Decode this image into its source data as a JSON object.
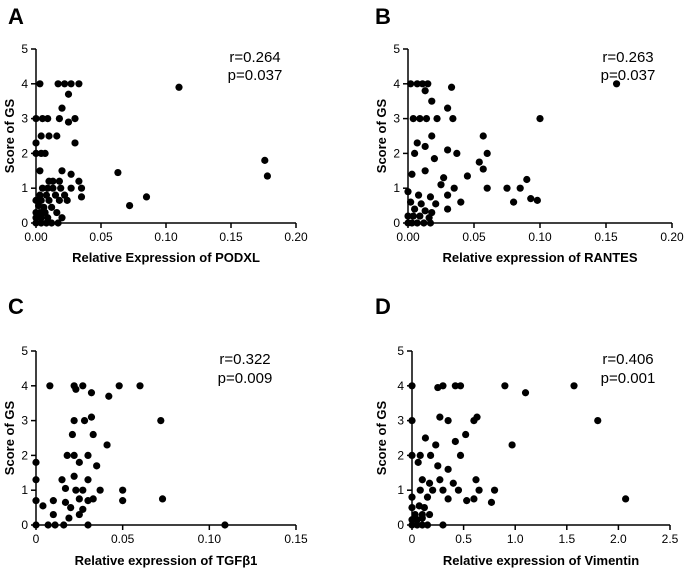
{
  "chart_data": [
    {
      "type": "scatter",
      "panel": "A",
      "xlabel": "Relative Expression of PODXL",
      "ylabel": "Score of GS",
      "xlim": [
        0,
        0.2
      ],
      "ylim": [
        0,
        5
      ],
      "xticks": [
        0,
        0.05,
        0.1,
        0.15,
        0.2
      ],
      "xtick_labels": [
        "0.00",
        "0.05",
        "0.10",
        "0.15",
        "0.20"
      ],
      "yticks": [
        0,
        1,
        2,
        3,
        4,
        5
      ],
      "ytick_labels": [
        "0",
        "1",
        "2",
        "3",
        "4",
        "5"
      ],
      "stats": [
        "r=0.264",
        "p=0.037"
      ],
      "points": [
        [
          0.003,
          4
        ],
        [
          0.017,
          4
        ],
        [
          0.022,
          4
        ],
        [
          0.027,
          4
        ],
        [
          0.033,
          4
        ],
        [
          0.11,
          3.9
        ],
        [
          0.025,
          3.7
        ],
        [
          0.02,
          3.3
        ],
        [
          0.0,
          3.0
        ],
        [
          0.005,
          3.0
        ],
        [
          0.009,
          3.0
        ],
        [
          0.018,
          3.0
        ],
        [
          0.025,
          2.9
        ],
        [
          0.03,
          3.0
        ],
        [
          0.0,
          2.3
        ],
        [
          0.004,
          2.5
        ],
        [
          0.01,
          2.5
        ],
        [
          0.016,
          2.5
        ],
        [
          0.03,
          2.3
        ],
        [
          0.0,
          2.0
        ],
        [
          0.004,
          2.0
        ],
        [
          0.007,
          2.0
        ],
        [
          0.176,
          1.8
        ],
        [
          0.178,
          1.35
        ],
        [
          0.003,
          1.5
        ],
        [
          0.02,
          1.5
        ],
        [
          0.027,
          1.4
        ],
        [
          0.033,
          1.2
        ],
        [
          0.063,
          1.45
        ],
        [
          0.01,
          1.2
        ],
        [
          0.013,
          1.2
        ],
        [
          0.018,
          1.2
        ],
        [
          0.005,
          1.0
        ],
        [
          0.009,
          1.0
        ],
        [
          0.013,
          1.0
        ],
        [
          0.019,
          1.0
        ],
        [
          0.027,
          1.0
        ],
        [
          0.035,
          1.0
        ],
        [
          0.003,
          0.8
        ],
        [
          0.008,
          0.8
        ],
        [
          0.015,
          0.8
        ],
        [
          0.022,
          0.8
        ],
        [
          0.035,
          0.75
        ],
        [
          0.085,
          0.75
        ],
        [
          0.0,
          0.65
        ],
        [
          0.004,
          0.65
        ],
        [
          0.01,
          0.65
        ],
        [
          0.018,
          0.65
        ],
        [
          0.024,
          0.65
        ],
        [
          0.072,
          0.5
        ],
        [
          0.002,
          0.5
        ],
        [
          0.006,
          0.45
        ],
        [
          0.012,
          0.45
        ],
        [
          0.0,
          0.3
        ],
        [
          0.003,
          0.3
        ],
        [
          0.007,
          0.3
        ],
        [
          0.016,
          0.3
        ],
        [
          0.0,
          0.15
        ],
        [
          0.004,
          0.15
        ],
        [
          0.009,
          0.15
        ],
        [
          0.02,
          0.15
        ],
        [
          0.0,
          0.0
        ],
        [
          0.004,
          0.0
        ],
        [
          0.008,
          0.0
        ],
        [
          0.012,
          0.0
        ],
        [
          0.017,
          0.0
        ]
      ]
    },
    {
      "type": "scatter",
      "panel": "B",
      "xlabel": "Relative expression of RANTES",
      "ylabel": "Score of GS",
      "xlim": [
        0,
        0.2
      ],
      "ylim": [
        0,
        5
      ],
      "xticks": [
        0,
        0.05,
        0.1,
        0.15,
        0.2
      ],
      "xtick_labels": [
        "0.00",
        "0.05",
        "0.10",
        "0.15",
        "0.20"
      ],
      "yticks": [
        0,
        1,
        2,
        3,
        4,
        5
      ],
      "ytick_labels": [
        "0",
        "1",
        "2",
        "3",
        "4",
        "5"
      ],
      "stats": [
        "r=0.263",
        "p=0.037"
      ],
      "points": [
        [
          0.002,
          4
        ],
        [
          0.007,
          4
        ],
        [
          0.011,
          4
        ],
        [
          0.015,
          4
        ],
        [
          0.033,
          3.9
        ],
        [
          0.158,
          4.0
        ],
        [
          0.013,
          3.8
        ],
        [
          0.018,
          3.5
        ],
        [
          0.03,
          3.3
        ],
        [
          0.004,
          3.0
        ],
        [
          0.009,
          3.0
        ],
        [
          0.014,
          3.0
        ],
        [
          0.022,
          3.0
        ],
        [
          0.034,
          3.0
        ],
        [
          0.1,
          3.0
        ],
        [
          0.018,
          2.5
        ],
        [
          0.057,
          2.5
        ],
        [
          0.007,
          2.3
        ],
        [
          0.013,
          2.2
        ],
        [
          0.03,
          2.1
        ],
        [
          0.037,
          2.0
        ],
        [
          0.06,
          2.0
        ],
        [
          0.005,
          2.0
        ],
        [
          0.02,
          1.85
        ],
        [
          0.054,
          1.75
        ],
        [
          0.057,
          1.55
        ],
        [
          0.003,
          1.4
        ],
        [
          0.013,
          1.5
        ],
        [
          0.027,
          1.3
        ],
        [
          0.045,
          1.35
        ],
        [
          0.09,
          1.25
        ],
        [
          0.025,
          1.1
        ],
        [
          0.035,
          1.0
        ],
        [
          0.06,
          1.0
        ],
        [
          0.075,
          1.0
        ],
        [
          0.085,
          1.0
        ],
        [
          0.0,
          0.9
        ],
        [
          0.008,
          0.8
        ],
        [
          0.017,
          0.75
        ],
        [
          0.03,
          0.8
        ],
        [
          0.093,
          0.7
        ],
        [
          0.098,
          0.65
        ],
        [
          0.08,
          0.6
        ],
        [
          0.002,
          0.6
        ],
        [
          0.01,
          0.55
        ],
        [
          0.021,
          0.55
        ],
        [
          0.04,
          0.6
        ],
        [
          0.005,
          0.4
        ],
        [
          0.013,
          0.35
        ],
        [
          0.018,
          0.3
        ],
        [
          0.03,
          0.4
        ],
        [
          0.0,
          0.2
        ],
        [
          0.004,
          0.2
        ],
        [
          0.009,
          0.2
        ],
        [
          0.016,
          0.15
        ],
        [
          0.0,
          0.0
        ],
        [
          0.003,
          0.0
        ],
        [
          0.007,
          0.0
        ],
        [
          0.012,
          0.0
        ],
        [
          0.017,
          0.0
        ]
      ]
    },
    {
      "type": "scatter",
      "panel": "C",
      "xlabel": "Relative expression of TGFβ1",
      "ylabel": "Score of GS",
      "xlim": [
        0,
        0.15
      ],
      "ylim": [
        0,
        5
      ],
      "xticks": [
        0,
        0.05,
        0.1,
        0.15
      ],
      "xtick_labels": [
        "0",
        "0.05",
        "0.10",
        "0.15"
      ],
      "yticks": [
        0,
        1,
        2,
        3,
        4,
        5
      ],
      "ytick_labels": [
        "0",
        "1",
        "2",
        "3",
        "4",
        "5"
      ],
      "stats": [
        "r=0.322",
        "p=0.009"
      ],
      "points": [
        [
          0.008,
          4
        ],
        [
          0.022,
          4
        ],
        [
          0.027,
          4
        ],
        [
          0.048,
          4
        ],
        [
          0.06,
          4
        ],
        [
          0.023,
          3.9
        ],
        [
          0.032,
          3.8
        ],
        [
          0.042,
          3.7
        ],
        [
          0.022,
          3.0
        ],
        [
          0.028,
          3.0
        ],
        [
          0.032,
          3.1
        ],
        [
          0.072,
          3.0
        ],
        [
          0.021,
          2.6
        ],
        [
          0.033,
          2.6
        ],
        [
          0.041,
          2.3
        ],
        [
          0.018,
          2.0
        ],
        [
          0.022,
          2.0
        ],
        [
          0.03,
          2.0
        ],
        [
          0.0,
          1.8
        ],
        [
          0.025,
          1.8
        ],
        [
          0.035,
          1.7
        ],
        [
          0.0,
          1.3
        ],
        [
          0.015,
          1.3
        ],
        [
          0.022,
          1.4
        ],
        [
          0.03,
          1.3
        ],
        [
          0.017,
          1.05
        ],
        [
          0.023,
          1.0
        ],
        [
          0.027,
          1.0
        ],
        [
          0.037,
          1.0
        ],
        [
          0.05,
          1.0
        ],
        [
          0.0,
          0.7
        ],
        [
          0.01,
          0.7
        ],
        [
          0.017,
          0.65
        ],
        [
          0.025,
          0.75
        ],
        [
          0.03,
          0.7
        ],
        [
          0.033,
          0.75
        ],
        [
          0.05,
          0.7
        ],
        [
          0.073,
          0.75
        ],
        [
          0.004,
          0.55
        ],
        [
          0.02,
          0.5
        ],
        [
          0.027,
          0.45
        ],
        [
          0.01,
          0.3
        ],
        [
          0.019,
          0.2
        ],
        [
          0.025,
          0.3
        ],
        [
          0.0,
          0.0
        ],
        [
          0.007,
          0.0
        ],
        [
          0.011,
          0.0
        ],
        [
          0.016,
          0.0
        ],
        [
          0.03,
          0.0
        ],
        [
          0.109,
          0.0
        ]
      ]
    },
    {
      "type": "scatter",
      "panel": "D",
      "xlabel": "Relative expression of Vimentin",
      "ylabel": "Score of GS",
      "xlim": [
        0,
        2.5
      ],
      "ylim": [
        0,
        5
      ],
      "xticks": [
        0,
        0.5,
        1.0,
        1.5,
        2.0,
        2.5
      ],
      "xtick_labels": [
        "0",
        "0.5",
        "1.0",
        "1.5",
        "2.0",
        "2.5"
      ],
      "yticks": [
        0,
        1,
        2,
        3,
        4,
        5
      ],
      "ytick_labels": [
        "0",
        "1",
        "2",
        "3",
        "4",
        "5"
      ],
      "stats": [
        "r=0.406",
        "p=0.001"
      ],
      "points": [
        [
          0.0,
          4
        ],
        [
          0.25,
          3.95
        ],
        [
          0.3,
          4.0
        ],
        [
          0.42,
          4.0
        ],
        [
          0.47,
          4.0
        ],
        [
          0.9,
          4.0
        ],
        [
          1.1,
          3.8
        ],
        [
          1.57,
          4.0
        ],
        [
          0.0,
          3.0
        ],
        [
          0.27,
          3.1
        ],
        [
          0.35,
          3.0
        ],
        [
          0.6,
          3.0
        ],
        [
          0.63,
          3.1
        ],
        [
          1.8,
          3.0
        ],
        [
          0.13,
          2.5
        ],
        [
          0.23,
          2.3
        ],
        [
          0.42,
          2.4
        ],
        [
          0.52,
          2.6
        ],
        [
          0.97,
          2.3
        ],
        [
          0.0,
          2.0
        ],
        [
          0.08,
          2.0
        ],
        [
          0.18,
          2.0
        ],
        [
          0.47,
          2.0
        ],
        [
          0.06,
          1.8
        ],
        [
          0.25,
          1.7
        ],
        [
          0.35,
          1.6
        ],
        [
          0.1,
          1.3
        ],
        [
          0.17,
          1.2
        ],
        [
          0.27,
          1.3
        ],
        [
          0.4,
          1.2
        ],
        [
          0.62,
          1.3
        ],
        [
          0.08,
          1.0
        ],
        [
          0.2,
          1.0
        ],
        [
          0.3,
          1.0
        ],
        [
          0.45,
          1.0
        ],
        [
          0.65,
          1.0
        ],
        [
          0.8,
          1.0
        ],
        [
          0.0,
          0.8
        ],
        [
          0.15,
          0.8
        ],
        [
          0.35,
          0.75
        ],
        [
          0.53,
          0.7
        ],
        [
          0.6,
          0.75
        ],
        [
          0.77,
          0.65
        ],
        [
          2.07,
          0.75
        ],
        [
          0.0,
          0.5
        ],
        [
          0.07,
          0.55
        ],
        [
          0.12,
          0.5
        ],
        [
          0.03,
          0.3
        ],
        [
          0.1,
          0.3
        ],
        [
          0.17,
          0.3
        ],
        [
          0.0,
          0.15
        ],
        [
          0.05,
          0.15
        ],
        [
          0.1,
          0.2
        ],
        [
          0.0,
          0.0
        ],
        [
          0.05,
          0.0
        ],
        [
          0.1,
          0.0
        ],
        [
          0.15,
          0.0
        ],
        [
          0.3,
          0.0
        ]
      ]
    }
  ]
}
